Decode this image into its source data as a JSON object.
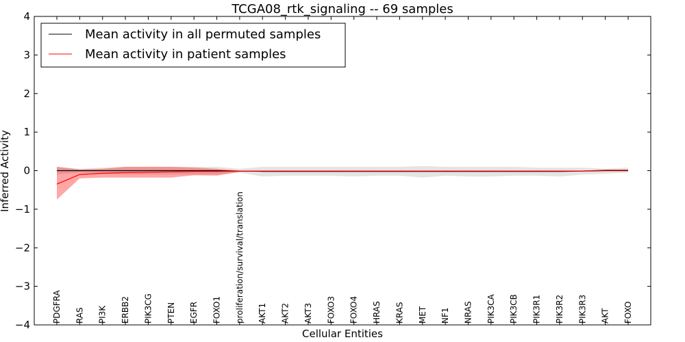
{
  "chart_data": {
    "type": "line",
    "title": "TCGA08_rtk_signaling -- 69 samples",
    "xlabel": "Cellular Entities",
    "ylabel": "Inferred Activity",
    "ylim": [
      -4,
      4
    ],
    "yticks": [
      -4,
      -3,
      -2,
      -1,
      0,
      1,
      2,
      3,
      4
    ],
    "ytick_labels": [
      "−4",
      "−3",
      "−2",
      "−1",
      "0",
      "1",
      "2",
      "3",
      "4"
    ],
    "categories": [
      "PDGFRA",
      "RAS",
      "PI3K",
      "ERBB2",
      "PIK3CG",
      "PTEN",
      "EGFR",
      "FOXO1",
      "proliferation/survival/translation",
      "AKT1",
      "AKT2",
      "AKT3",
      "FOXO3",
      "FOXO4",
      "HRAS",
      "KRAS",
      "MET",
      "NF1",
      "NRAS",
      "PIK3CA",
      "PIK3CB",
      "PIK3R1",
      "PIK3R2",
      "PIK3R3",
      "AKT",
      "FOXO"
    ],
    "legend_position": "top-left",
    "series": [
      {
        "name": "Mean activity in all permuted samples",
        "color": "#000000",
        "values": [
          0.0,
          0.0,
          0.0,
          0.0,
          0.0,
          0.0,
          0.0,
          0.0,
          -0.01,
          -0.02,
          -0.02,
          -0.02,
          -0.02,
          -0.02,
          -0.02,
          -0.02,
          -0.02,
          -0.02,
          -0.02,
          -0.02,
          -0.02,
          -0.02,
          -0.02,
          -0.01,
          0.0,
          0.0
        ],
        "band_upper": [
          0.1,
          0.05,
          0.08,
          0.1,
          0.1,
          0.1,
          0.1,
          0.1,
          0.05,
          0.1,
          0.1,
          0.1,
          0.1,
          0.1,
          0.1,
          0.1,
          0.12,
          0.1,
          0.1,
          0.1,
          0.1,
          0.08,
          0.08,
          0.08,
          0.05,
          0.08
        ],
        "band_lower": [
          -0.1,
          -0.05,
          -0.08,
          -0.1,
          -0.1,
          -0.1,
          -0.1,
          -0.1,
          -0.05,
          -0.15,
          -0.13,
          -0.13,
          -0.13,
          -0.15,
          -0.13,
          -0.13,
          -0.18,
          -0.13,
          -0.15,
          -0.15,
          -0.13,
          -0.13,
          -0.15,
          -0.1,
          -0.08,
          -0.05
        ],
        "band_color": "#bbbbbb"
      },
      {
        "name": "Mean activity in patient samples",
        "color": "#ff0000",
        "values": [
          -0.35,
          -0.1,
          -0.07,
          -0.05,
          -0.04,
          -0.03,
          -0.02,
          -0.02,
          -0.01,
          -0.01,
          -0.01,
          -0.01,
          -0.01,
          -0.01,
          -0.01,
          -0.01,
          -0.01,
          -0.01,
          -0.01,
          -0.01,
          -0.01,
          -0.01,
          -0.01,
          -0.01,
          0.01,
          0.01
        ],
        "band_upper": [
          0.1,
          0.03,
          0.05,
          0.1,
          0.1,
          0.1,
          0.08,
          0.05,
          0.0,
          0.0,
          0.0,
          0.0,
          0.0,
          0.0,
          0.0,
          0.0,
          0.0,
          0.0,
          0.0,
          0.0,
          0.0,
          0.0,
          0.0,
          0.0,
          0.02,
          0.02
        ],
        "band_lower": [
          -0.75,
          -0.2,
          -0.18,
          -0.18,
          -0.18,
          -0.18,
          -0.12,
          -0.13,
          -0.03,
          -0.02,
          -0.02,
          -0.02,
          -0.02,
          -0.02,
          -0.02,
          -0.02,
          -0.02,
          -0.02,
          -0.02,
          -0.02,
          -0.02,
          -0.02,
          -0.02,
          -0.02,
          0.0,
          0.0
        ],
        "band_color": "#ff0000"
      }
    ]
  }
}
